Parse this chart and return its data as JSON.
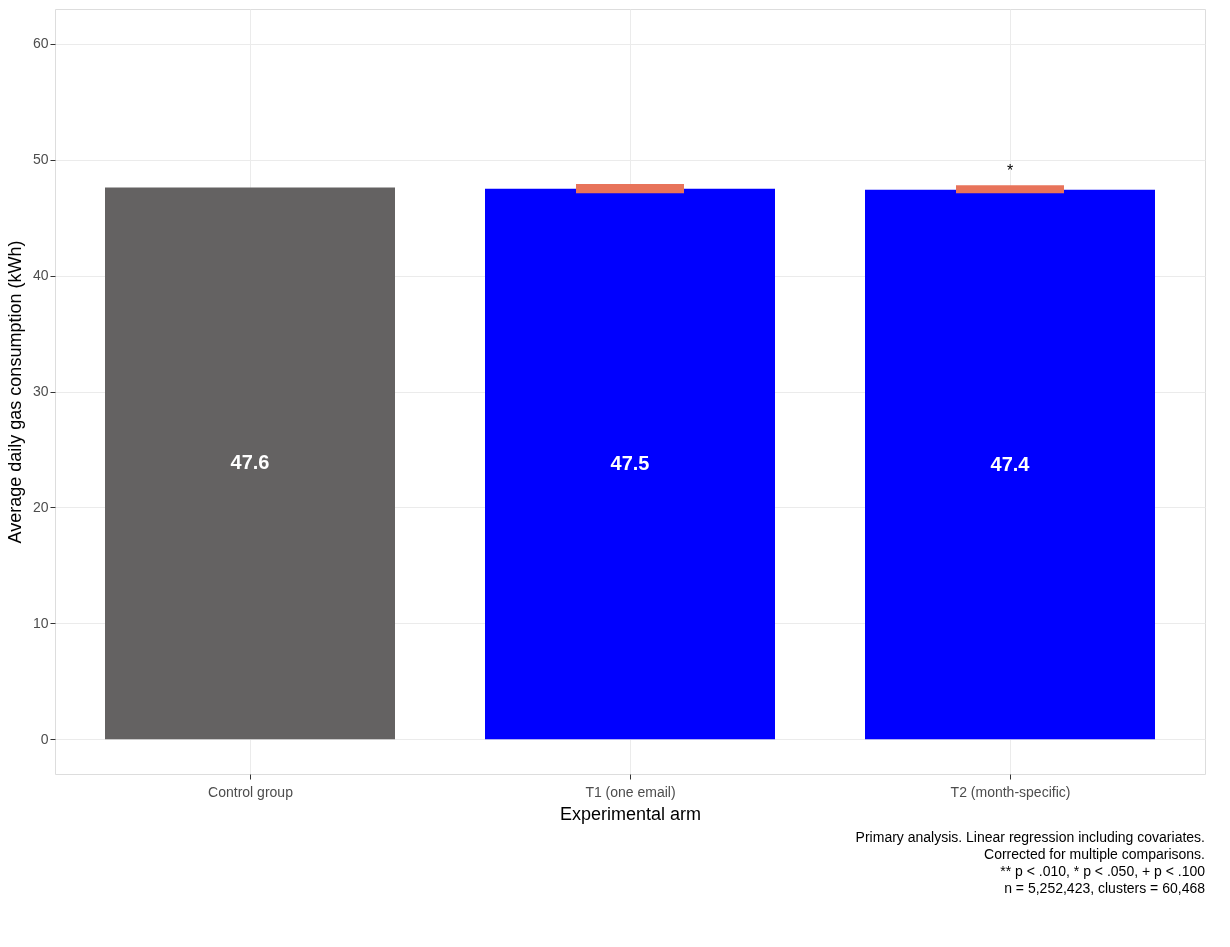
{
  "chart_data": {
    "type": "bar",
    "xlabel": "Experimental arm",
    "ylabel": "Average daily gas consumption (kWh)",
    "categories": [
      "Control group",
      "T1 (one email)",
      "T2 (month-specific)"
    ],
    "values": [
      47.6,
      47.5,
      47.4
    ],
    "colors": [
      "#646262",
      "#0000ff",
      "#0000ff"
    ],
    "errors": [
      null,
      [
        47.1,
        47.9
      ],
      [
        47.1,
        47.8
      ]
    ],
    "data_labels": true,
    "ylim": [
      -3,
      63
    ],
    "yticks": [
      0,
      10,
      20,
      30,
      40,
      50,
      60
    ],
    "grid": true,
    "annotations": [
      {
        "text": "*",
        "x": "T2 (month-specific)",
        "y": 47.8
      },
      "Primary analysis. Linear regression including covariates.",
      "Corrected for multiple comparisons.",
      "** p < .010, * p < .050, + p < .100",
      "n = 5,252,423, clusters = 60,468"
    ]
  }
}
